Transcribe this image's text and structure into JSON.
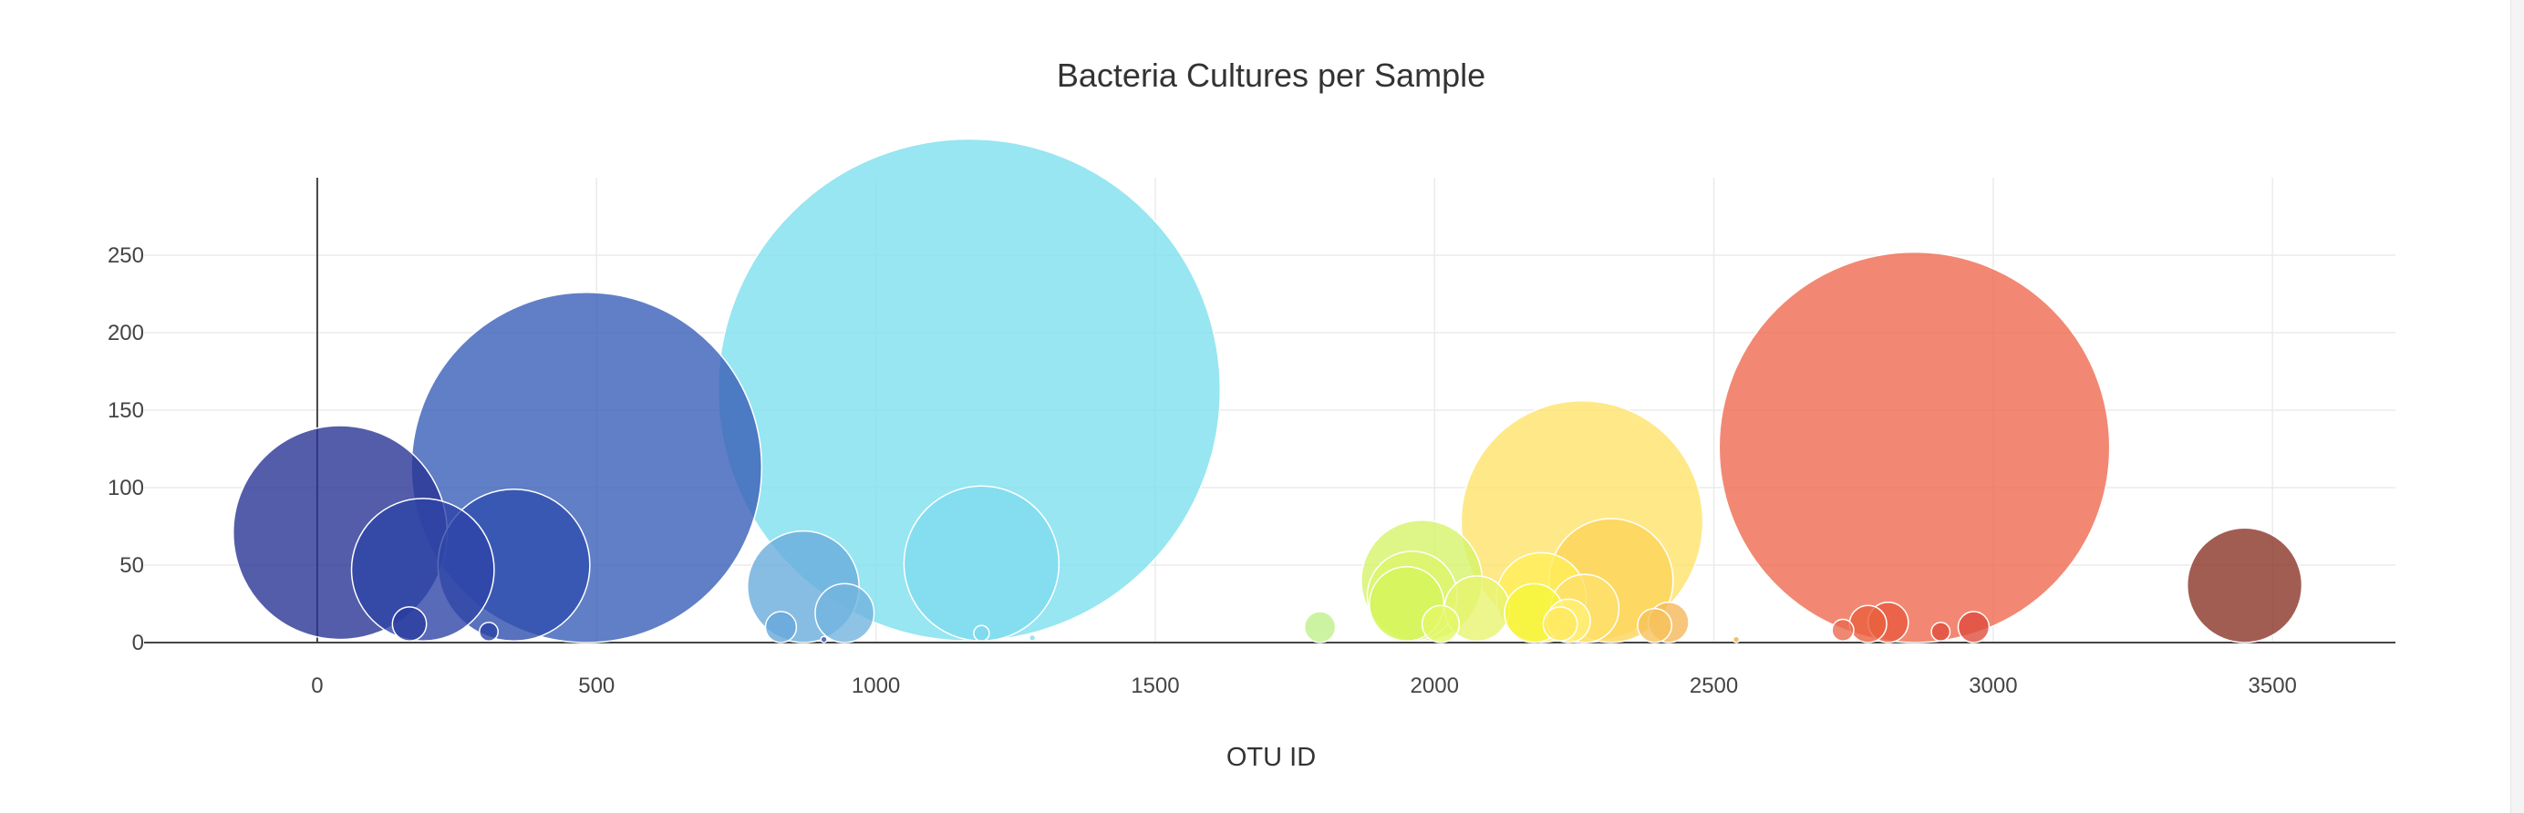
{
  "chart_data": {
    "type": "scatter",
    "subtype": "bubble",
    "title": "Bacteria Cultures per Sample",
    "xlabel": "OTU ID",
    "ylabel": "",
    "xlim": [
      -310,
      3720
    ],
    "ylim": [
      0,
      300
    ],
    "x_ticks": [
      0,
      500,
      1000,
      1500,
      2000,
      2500,
      3000,
      3500
    ],
    "y_ticks": [
      0,
      50,
      100,
      150,
      200,
      250
    ],
    "grid": true,
    "legend": "none",
    "colorscale": "Jet (OTU ID)",
    "points": [
      {
        "x": 41,
        "y": 71,
        "r": 69,
        "color": "#283593"
      },
      {
        "x": 189,
        "y": 47,
        "r": 46,
        "color": "#2e45a6"
      },
      {
        "x": 352,
        "y": 50,
        "r": 49,
        "color": "#2f4fae"
      },
      {
        "x": 482,
        "y": 113,
        "r": 113,
        "color": "#3a5fb8"
      },
      {
        "x": 165,
        "y": 12,
        "r": 11,
        "color": "#2a3d9f"
      },
      {
        "x": 307,
        "y": 7,
        "r": 6,
        "color": "#2b44a4"
      },
      {
        "x": 870,
        "y": 36,
        "r": 36,
        "color": "#6aacdc"
      },
      {
        "x": 944,
        "y": 19,
        "r": 19,
        "color": "#72b4df"
      },
      {
        "x": 830,
        "y": 10,
        "r": 10,
        "color": "#66a8da"
      },
      {
        "x": 907,
        "y": 2,
        "r": 2,
        "color": "#2d4fae"
      },
      {
        "x": 1167,
        "y": 163,
        "r": 162,
        "color": "#7de0ee"
      },
      {
        "x": 1189,
        "y": 51,
        "r": 50,
        "color": "#7fdcef"
      },
      {
        "x": 1189,
        "y": 6,
        "r": 5,
        "color": "#80d8ee"
      },
      {
        "x": 1795,
        "y": 10,
        "r": 10,
        "color": "#bff089"
      },
      {
        "x": 1977,
        "y": 40,
        "r": 39,
        "color": "#d6f36a"
      },
      {
        "x": 1960,
        "y": 30,
        "r": 29,
        "color": "#dcf56c"
      },
      {
        "x": 1950,
        "y": 25,
        "r": 24,
        "color": "#d4f55a"
      },
      {
        "x": 2011,
        "y": 12,
        "r": 12,
        "color": "#e3f768"
      },
      {
        "x": 2076,
        "y": 22,
        "r": 21,
        "color": "#e7f46f"
      },
      {
        "x": 2264,
        "y": 78,
        "r": 78,
        "color": "#ffe26a"
      },
      {
        "x": 2191,
        "y": 29,
        "r": 29,
        "color": "#ffed5a"
      },
      {
        "x": 2178,
        "y": 19,
        "r": 19,
        "color": "#f6f53a"
      },
      {
        "x": 2316,
        "y": 40,
        "r": 40,
        "color": "#fcd55a"
      },
      {
        "x": 2269,
        "y": 22,
        "r": 22,
        "color": "#fde06a"
      },
      {
        "x": 2240,
        "y": 14,
        "r": 14,
        "color": "#fff076"
      },
      {
        "x": 2225,
        "y": 12,
        "r": 11,
        "color": "#ffe860"
      },
      {
        "x": 2394,
        "y": 11,
        "r": 11,
        "color": "#f6c25a"
      },
      {
        "x": 2419,
        "y": 13,
        "r": 13,
        "color": "#f5b85a"
      },
      {
        "x": 2859,
        "y": 126,
        "r": 126,
        "color": "#ef6a50"
      },
      {
        "x": 2731,
        "y": 8,
        "r": 7,
        "color": "#ea6a4f"
      },
      {
        "x": 2776,
        "y": 12,
        "r": 12,
        "color": "#e8603f"
      },
      {
        "x": 2812,
        "y": 13,
        "r": 13,
        "color": "#e85a40"
      },
      {
        "x": 2906,
        "y": 7,
        "r": 6,
        "color": "#e04f3d"
      },
      {
        "x": 2965,
        "y": 10,
        "r": 10,
        "color": "#de4c3d"
      },
      {
        "x": 3450,
        "y": 37,
        "r": 37,
        "color": "#8b3428"
      },
      {
        "x": 1280,
        "y": 3,
        "r": 2,
        "color": "#80dcee"
      },
      {
        "x": 2540,
        "y": 2,
        "r": 2,
        "color": "#f1b03b"
      }
    ]
  }
}
